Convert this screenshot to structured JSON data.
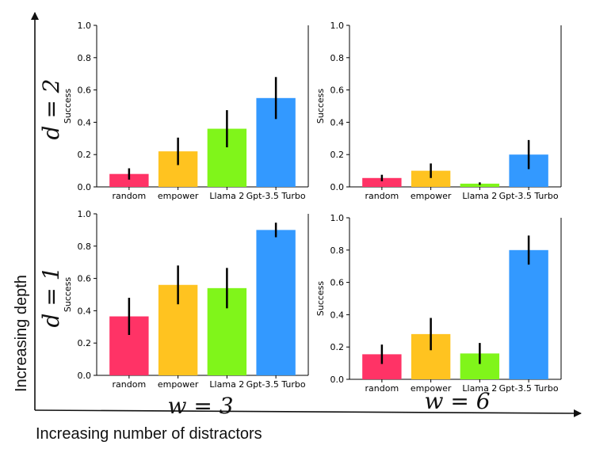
{
  "figure": {
    "x_axis_label": "Increasing number of distractors",
    "y_axis_label": "Increasing depth",
    "row_labels": [
      "d = 2",
      "d = 1"
    ],
    "col_labels": [
      "w = 3",
      "w = 6"
    ]
  },
  "colors": [
    "#ff3366",
    "#ffc320",
    "#80f51a",
    "#3399ff"
  ],
  "chart_data": [
    {
      "type": "bar",
      "panel": "d=2, w=3",
      "categories": [
        "random",
        "empower",
        "Llama 2",
        "Gpt-3.5 Turbo"
      ],
      "values": [
        0.08,
        0.22,
        0.36,
        0.55
      ],
      "errors": [
        0.035,
        0.085,
        0.115,
        0.13
      ],
      "ylabel": "Success",
      "ylim": [
        0,
        1
      ],
      "yticks": [
        "0.0",
        "0.2",
        "0.4",
        "0.6",
        "0.8",
        "1.0"
      ]
    },
    {
      "type": "bar",
      "panel": "d=2, w=6",
      "categories": [
        "random",
        "empower",
        "Llama 2",
        "Gpt-3.5 Turbo"
      ],
      "values": [
        0.055,
        0.1,
        0.02,
        0.2
      ],
      "errors": [
        0.02,
        0.045,
        0.008,
        0.09
      ],
      "ylabel": "Success",
      "ylim": [
        0,
        1
      ],
      "yticks": [
        "0.0",
        "0.2",
        "0.4",
        "0.6",
        "0.8",
        "1.0"
      ]
    },
    {
      "type": "bar",
      "panel": "d=1, w=3",
      "categories": [
        "random",
        "empower",
        "Llama 2",
        "Gpt-3.5 Turbo"
      ],
      "values": [
        0.365,
        0.56,
        0.54,
        0.9
      ],
      "errors": [
        0.115,
        0.12,
        0.125,
        0.045
      ],
      "ylabel": "Success",
      "ylim": [
        0,
        1
      ],
      "yticks": [
        "0.0",
        "0.2",
        "0.4",
        "0.6",
        "0.8",
        "1.0"
      ]
    },
    {
      "type": "bar",
      "panel": "d=1, w=6",
      "categories": [
        "random",
        "empower",
        "Llama 2",
        "Gpt-3.5 Turbo"
      ],
      "values": [
        0.155,
        0.28,
        0.16,
        0.8
      ],
      "errors": [
        0.06,
        0.1,
        0.065,
        0.09
      ],
      "ylabel": "Success",
      "ylim": [
        0,
        1
      ],
      "yticks": [
        "0.0",
        "0.2",
        "0.4",
        "0.6",
        "0.8",
        "1.0"
      ]
    }
  ]
}
